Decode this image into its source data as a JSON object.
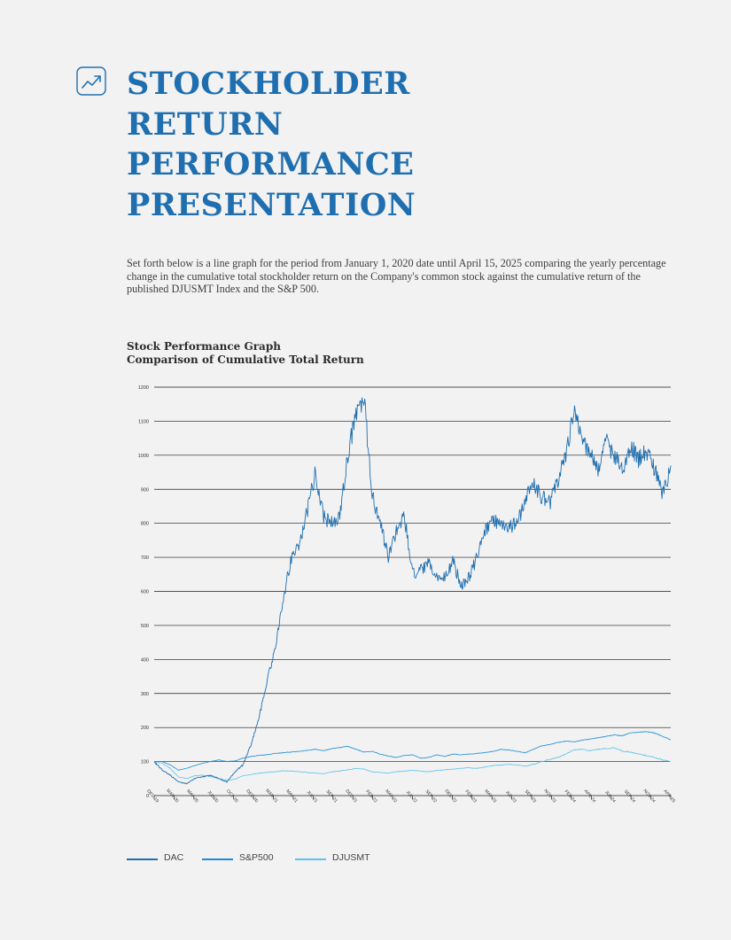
{
  "page": {
    "title": "STOCKHOLDER\nRETURN\nPERFORMANCE\nPRESENTATION",
    "intro": "Set forth below is a line graph for the period from January 1, 2020 date until April 15, 2025 comparing the yearly percentage change in the cumulative total stockholder return on the Company's common stock against the cumulative return of the published DJUSMT Index and the S&P 500.",
    "chart_title": "Stock Performance Graph",
    "chart_subtitle": "Comparison of Cumulative Total Return",
    "title_icon": "trend-up-icon",
    "accent_color": "#1f6fb0"
  },
  "chart_data": {
    "type": "line",
    "title": "Stock Performance Graph",
    "subtitle": "Comparison of Cumulative Total Return",
    "xlabel": "",
    "ylabel": "",
    "ylim": [
      0,
      1200
    ],
    "yticks": [
      0,
      100,
      200,
      300,
      400,
      500,
      600,
      700,
      800,
      900,
      1000,
      1100,
      1200
    ],
    "x_tick_labels": [
      "DEC 19",
      "MAR 20",
      "MAY 20",
      "JUL 20",
      "OCT 20",
      "DEC 20",
      "MAR 21",
      "MAY 21",
      "JUL 21",
      "SEP 21",
      "DEC 21",
      "FEB 22",
      "MAY 22",
      "JUL 22",
      "SEP 22",
      "DEC 22",
      "FEB 23",
      "MAY 23",
      "JUL 23",
      "SEP 23",
      "NOV 23",
      "FEB 24",
      "APR 24",
      "JUL 24",
      "SEP 24",
      "NOV 24",
      "APR 25"
    ],
    "grid": true,
    "legend_position": "bottom-left",
    "x": [
      "DEC 19",
      "JAN 20",
      "FEB 20",
      "MAR 20",
      "APR 20",
      "MAY 20",
      "JUN 20",
      "JUL 20",
      "AUG 20",
      "SEP 20",
      "OCT 20",
      "NOV 20",
      "DEC 20",
      "JAN 21",
      "FEB 21",
      "MAR 21",
      "APR 21",
      "MAY 21",
      "JUN 21",
      "JUL 21",
      "AUG 21",
      "SEP 21",
      "OCT 21",
      "NOV 21",
      "DEC 21",
      "JAN 22",
      "FEB 22",
      "MAR 22",
      "APR 22",
      "MAY 22",
      "JUN 22",
      "JUL 22",
      "AUG 22",
      "SEP 22",
      "OCT 22",
      "NOV 22",
      "DEC 22",
      "JAN 23",
      "FEB 23",
      "MAR 23",
      "APR 23",
      "MAY 23",
      "JUN 23",
      "JUL 23",
      "AUG 23",
      "SEP 23",
      "OCT 23",
      "NOV 23",
      "DEC 23",
      "JAN 24",
      "FEB 24",
      "MAR 24",
      "APR 24",
      "MAY 24",
      "JUN 24",
      "JUL 24",
      "AUG 24",
      "SEP 24",
      "OCT 24",
      "NOV 24",
      "DEC 24",
      "JAN 25",
      "FEB 25",
      "MAR 25",
      "APR 25"
    ],
    "series": [
      {
        "name": "DAC",
        "color": "#1f6fb0",
        "values": [
          100,
          75,
          60,
          40,
          35,
          50,
          55,
          60,
          50,
          40,
          70,
          90,
          150,
          230,
          340,
          430,
          580,
          700,
          740,
          840,
          950,
          820,
          800,
          820,
          1000,
          1120,
          1170,
          880,
          800,
          700,
          780,
          820,
          650,
          660,
          680,
          640,
          640,
          690,
          620,
          640,
          700,
          780,
          810,
          800,
          790,
          800,
          870,
          920,
          880,
          860,
          920,
          1000,
          1130,
          1060,
          1000,
          960,
          1040,
          1000,
          960,
          1030,
          990,
          1010,
          960,
          880,
          970
        ]
      },
      {
        "name": "S&P500",
        "color": "#1a8cd8",
        "values": [
          100,
          100,
          90,
          75,
          80,
          88,
          95,
          100,
          105,
          100,
          102,
          110,
          115,
          118,
          120,
          124,
          126,
          128,
          130,
          133,
          136,
          132,
          138,
          141,
          145,
          136,
          128,
          130,
          122,
          116,
          112,
          118,
          120,
          110,
          112,
          120,
          115,
          122,
          120,
          122,
          124,
          126,
          130,
          136,
          134,
          130,
          126,
          136,
          146,
          150,
          156,
          160,
          158,
          163,
          166,
          170,
          174,
          178,
          176,
          184,
          186,
          188,
          184,
          174,
          164
        ]
      },
      {
        "name": "DJUSMT",
        "color": "#5cc3ea",
        "values": [
          100,
          95,
          80,
          55,
          50,
          58,
          60,
          56,
          50,
          45,
          48,
          58,
          62,
          66,
          68,
          70,
          73,
          72,
          70,
          68,
          66,
          64,
          70,
          72,
          76,
          80,
          78,
          70,
          68,
          66,
          70,
          72,
          74,
          72,
          70,
          74,
          76,
          78,
          80,
          82,
          80,
          84,
          88,
          90,
          92,
          90,
          86,
          92,
          100,
          106,
          112,
          122,
          134,
          136,
          132,
          136,
          138,
          140,
          130,
          128,
          122,
          118,
          112,
          105,
          100
        ]
      }
    ]
  }
}
